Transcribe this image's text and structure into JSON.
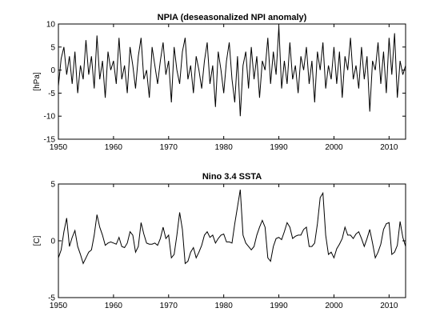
{
  "chart_data": [
    {
      "type": "line",
      "title": "NPIA (deseasonalized NPI anomaly)",
      "xlabel": "",
      "ylabel": "[hPa]",
      "xlim": [
        1950,
        2013
      ],
      "ylim": [
        -15,
        10
      ],
      "xticks": [
        1950,
        1960,
        1970,
        1980,
        1990,
        2000,
        2010
      ],
      "yticks": [
        -15,
        -10,
        -5,
        0,
        5,
        10
      ],
      "series_color": "#000000",
      "series": [
        {
          "x": [
            1950.0,
            1950.5,
            1951.0,
            1951.5,
            1952.0,
            1952.5,
            1953.0,
            1953.5,
            1954.0,
            1954.5,
            1955.0,
            1955.5,
            1956.0,
            1956.5,
            1957.0,
            1957.5,
            1958.0,
            1958.5,
            1959.0,
            1959.5,
            1960.0,
            1960.5,
            1961.0,
            1961.5,
            1962.0,
            1962.5,
            1963.0,
            1963.5,
            1964.0,
            1964.5,
            1965.0,
            1965.5,
            1966.0,
            1966.5,
            1967.0,
            1967.5,
            1968.0,
            1968.5,
            1969.0,
            1969.5,
            1970.0,
            1970.5,
            1971.0,
            1971.5,
            1972.0,
            1972.5,
            1973.0,
            1973.5,
            1974.0,
            1974.5,
            1975.0,
            1975.5,
            1976.0,
            1976.5,
            1977.0,
            1977.5,
            1978.0,
            1978.5,
            1979.0,
            1979.5,
            1980.0,
            1980.5,
            1981.0,
            1981.5,
            1982.0,
            1982.5,
            1983.0,
            1983.5,
            1984.0,
            1984.5,
            1985.0,
            1985.5,
            1986.0,
            1986.5,
            1987.0,
            1987.5,
            1988.0,
            1988.5,
            1989.0,
            1989.5,
            1990.0,
            1990.5,
            1991.0,
            1991.5,
            1992.0,
            1992.5,
            1993.0,
            1993.5,
            1994.0,
            1994.5,
            1995.0,
            1995.5,
            1996.0,
            1996.5,
            1997.0,
            1997.5,
            1998.0,
            1998.5,
            1999.0,
            1999.5,
            2000.0,
            2000.5,
            2001.0,
            2001.5,
            2002.0,
            2002.5,
            2003.0,
            2003.5,
            2004.0,
            2004.5,
            2005.0,
            2005.5,
            2006.0,
            2006.5,
            2007.0,
            2007.5,
            2008.0,
            2008.5,
            2009.0,
            2009.5,
            2010.0,
            2010.5,
            2011.0,
            2011.5,
            2012.0,
            2012.5,
            2013.0
          ],
          "values": [
            -3.5,
            2.5,
            5,
            -1,
            3,
            -3,
            4,
            -5,
            1,
            -2,
            6.5,
            -1,
            3,
            -4,
            7.5,
            -2,
            2,
            -6,
            4,
            0,
            2,
            -3,
            7,
            -2,
            1,
            -5,
            5,
            1,
            -4,
            3,
            7,
            -2,
            0,
            -6,
            5,
            1,
            -3,
            2,
            6,
            -1,
            2,
            -7,
            5,
            0,
            -3,
            4,
            7,
            -2,
            1,
            -5,
            3,
            0,
            -4,
            2,
            6,
            -3,
            1,
            -8,
            4,
            0,
            -5,
            2,
            6,
            -2,
            -7,
            3,
            -10,
            1,
            4,
            -4,
            5,
            -2,
            3,
            -6,
            2,
            0,
            7,
            -3,
            4,
            -1,
            9.5,
            -4,
            2,
            -3,
            6,
            -2,
            1,
            -5,
            3,
            0,
            5,
            -3,
            2,
            -7,
            4,
            0,
            6,
            -4,
            1,
            -2,
            5,
            -3,
            4,
            -6,
            3,
            0,
            7,
            -2,
            1,
            -4,
            5,
            -2,
            3,
            -9,
            2,
            0,
            6,
            -3,
            4,
            -5,
            7,
            -1,
            8,
            -6,
            2,
            -1,
            1
          ]
        }
      ]
    },
    {
      "type": "line",
      "title": "Nino 3.4 SSTA",
      "xlabel": "",
      "ylabel": "[C]",
      "xlim": [
        1950,
        2013
      ],
      "ylim": [
        -5,
        5
      ],
      "xticks": [
        1950,
        1960,
        1970,
        1980,
        1990,
        2000,
        2010
      ],
      "yticks": [
        -5,
        0,
        5
      ],
      "series_color": "#000000",
      "series": [
        {
          "x": [
            1950.0,
            1950.5,
            1951.0,
            1951.5,
            1952.0,
            1952.5,
            1953.0,
            1953.5,
            1954.0,
            1954.5,
            1955.0,
            1955.5,
            1956.0,
            1956.5,
            1957.0,
            1957.5,
            1958.0,
            1958.5,
            1959.0,
            1959.5,
            1960.0,
            1960.5,
            1961.0,
            1961.5,
            1962.0,
            1962.5,
            1963.0,
            1963.5,
            1964.0,
            1964.5,
            1965.0,
            1965.5,
            1966.0,
            1966.5,
            1967.0,
            1967.5,
            1968.0,
            1968.5,
            1969.0,
            1969.5,
            1970.0,
            1970.5,
            1971.0,
            1971.5,
            1972.0,
            1972.5,
            1973.0,
            1973.5,
            1974.0,
            1974.5,
            1975.0,
            1975.5,
            1976.0,
            1976.5,
            1977.0,
            1977.5,
            1978.0,
            1978.5,
            1979.0,
            1979.5,
            1980.0,
            1980.5,
            1981.0,
            1981.5,
            1982.0,
            1982.5,
            1983.0,
            1983.5,
            1984.0,
            1984.5,
            1985.0,
            1985.5,
            1986.0,
            1986.5,
            1987.0,
            1987.5,
            1988.0,
            1988.5,
            1989.0,
            1989.5,
            1990.0,
            1990.5,
            1991.0,
            1991.5,
            1992.0,
            1992.5,
            1993.0,
            1993.5,
            1994.0,
            1994.5,
            1995.0,
            1995.5,
            1996.0,
            1996.5,
            1997.0,
            1997.5,
            1998.0,
            1998.5,
            1999.0,
            1999.5,
            2000.0,
            2000.5,
            2001.0,
            2001.5,
            2002.0,
            2002.5,
            2003.0,
            2003.5,
            2004.0,
            2004.5,
            2005.0,
            2005.5,
            2006.0,
            2006.5,
            2007.0,
            2007.5,
            2008.0,
            2008.5,
            2009.0,
            2009.5,
            2010.0,
            2010.5,
            2011.0,
            2011.5,
            2012.0,
            2012.5,
            2013.0
          ],
          "values": [
            -1.5,
            -0.8,
            0.8,
            2.0,
            -0.5,
            0.3,
            0.9,
            -0.5,
            -1.2,
            -2.0,
            -1.5,
            -1.0,
            -0.8,
            0.5,
            2.3,
            1.2,
            0.5,
            -0.4,
            -0.2,
            -0.1,
            -0.2,
            -0.3,
            0.3,
            -0.5,
            -0.6,
            -0.2,
            0.8,
            0.5,
            -1.0,
            -0.5,
            1.6,
            0.6,
            -0.2,
            -0.3,
            -0.3,
            -0.2,
            -0.4,
            0.2,
            1.2,
            0.2,
            0.5,
            -1.5,
            -1.2,
            0.5,
            2.5,
            1.0,
            -2.0,
            -1.8,
            -1.0,
            -0.6,
            -1.5,
            -1.0,
            -0.4,
            0.5,
            0.8,
            0.3,
            0.5,
            -0.2,
            0.2,
            0.5,
            0.6,
            -0.1,
            -0.1,
            -0.2,
            1.5,
            3.0,
            4.5,
            0.5,
            -0.2,
            -0.5,
            -0.8,
            -0.5,
            0.5,
            1.2,
            1.8,
            1.2,
            -1.5,
            -1.8,
            -0.5,
            0.2,
            0.3,
            0.1,
            0.8,
            1.6,
            1.2,
            0.2,
            0.4,
            0.5,
            0.5,
            1.0,
            1.2,
            -0.5,
            -0.5,
            -0.2,
            1.5,
            3.8,
            4.2,
            0.5,
            -1.2,
            -1.0,
            -1.5,
            -0.7,
            -0.3,
            0.2,
            1.2,
            0.5,
            0.5,
            0.2,
            0.6,
            0.8,
            0.2,
            -0.5,
            0.2,
            1.0,
            -0.2,
            -1.5,
            -1.0,
            -0.3,
            1.0,
            1.5,
            1.6,
            -1.2,
            -1.0,
            -0.4,
            1.7,
            0.3,
            -0.5
          ]
        }
      ]
    }
  ]
}
